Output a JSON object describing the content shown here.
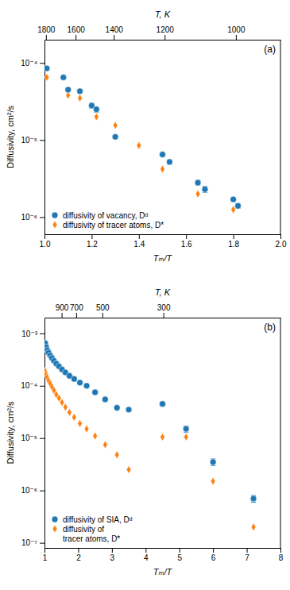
{
  "chart_data": [
    {
      "type": "scatter",
      "log": "y",
      "legend": "lower left",
      "grid": false,
      "xlabel": "Tₘ/T",
      "ylabel": "Diffusivity, cm²/s",
      "x2label": "T, K",
      "annotations": [
        "(a)"
      ],
      "xlim": [
        1.0,
        2.0
      ],
      "ylim": [
        6e-07,
        0.0002
      ],
      "xticks": [
        {
          "value": 1.0,
          "label": "1.0"
        },
        1.2,
        1.4,
        1.6,
        1.8,
        {
          "value": 2.0,
          "label": "2.0"
        }
      ],
      "yticks": [
        {
          "value": 1e-06,
          "label": "10⁻⁶"
        },
        {
          "value": 1e-05,
          "label": "10⁻⁵"
        },
        {
          "value": 0.0001,
          "label": "10⁻⁴"
        }
      ],
      "x2lim": [
        1.0,
        2.0
      ],
      "x2ticks": [
        {
          "value": 1.0061111111111112,
          "label": "1800"
        },
        {
          "value": 1.131875,
          "label": "1600"
        },
        {
          "value": 1.2935714285714286,
          "label": "1400"
        },
        {
          "value": 1.5091666666666668,
          "label": "1200"
        },
        {
          "value": 1.811,
          "label": "1000"
        }
      ],
      "series": [
        {
          "name": "diffusivity of vacancy, Dᵈ",
          "marker": "circle",
          "x": [
            1.01,
            1.08,
            1.1,
            1.15,
            1.2,
            1.22,
            1.3,
            1.5,
            1.53,
            1.65,
            1.68,
            1.8,
            1.82
          ],
          "values": [
            8.5e-05,
            6.5e-05,
            4.5e-05,
            4.3e-05,
            2.8e-05,
            2.5e-05,
            1.1e-05,
            6.5e-06,
            5.2e-06,
            2.8e-06,
            2.3e-06,
            1.7e-06,
            1.4e-06
          ],
          "yerr_lo": [
            3e-06,
            3e-06,
            2e-06,
            2e-06,
            2e-06,
            2e-06,
            5e-07,
            3e-07,
            3e-07,
            2e-07,
            2e-07,
            1e-07,
            1e-07
          ],
          "yerr_hi": [
            3e-06,
            3e-06,
            2e-06,
            2e-06,
            2e-06,
            2e-06,
            5e-07,
            3e-07,
            3e-07,
            2e-07,
            2e-07,
            1e-07,
            1e-07
          ]
        },
        {
          "name": "diffusivity of tracer atoms, D*",
          "marker": "diamond",
          "x": [
            1.01,
            1.1,
            1.15,
            1.22,
            1.3,
            1.4,
            1.5,
            1.65,
            1.8
          ],
          "values": [
            6.5e-05,
            3.8e-05,
            3.5e-05,
            2e-05,
            1.55e-05,
            8.5e-06,
            4.2e-06,
            2e-06,
            1.25e-06
          ]
        }
      ]
    },
    {
      "type": "scatter",
      "log": "y",
      "legend": "lower left",
      "grid": false,
      "xlabel": "Tₘ/T",
      "ylabel": "Diffusivity, cm²/s",
      "x2label": "T, K",
      "annotations": [
        "(b)"
      ],
      "xlim": [
        1.0,
        8.0
      ],
      "ylim": [
        8e-08,
        0.002
      ],
      "xticks": [
        1,
        2,
        3,
        4,
        5,
        6,
        7,
        8
      ],
      "yticks": [
        {
          "value": 1e-07,
          "label": "10⁻⁷"
        },
        {
          "value": 1e-06,
          "label": "10⁻⁶"
        },
        {
          "value": 1e-05,
          "label": "10⁻⁵"
        },
        {
          "value": 0.0001,
          "label": "10⁻⁴"
        },
        {
          "value": 0.001,
          "label": "10⁻³"
        }
      ],
      "x2lim": [
        1.0,
        8.0
      ],
      "x2ticks": [
        {
          "value": 1.508888888888889,
          "label": "900"
        },
        {
          "value": 1.94,
          "label": "700"
        },
        {
          "value": 2.716,
          "label": "500"
        },
        {
          "value": 4.526666666666667,
          "label": "300"
        }
      ],
      "series": [
        {
          "name": "diffusivity of SIA, Dᵈ",
          "marker": "circle",
          "x": [
            1.02,
            1.05,
            1.08,
            1.12,
            1.17,
            1.22,
            1.28,
            1.35,
            1.43,
            1.52,
            1.62,
            1.74,
            1.88,
            2.05,
            2.25,
            2.5,
            2.8,
            3.15,
            3.5,
            4.5,
            5.2,
            6.0,
            7.2
          ],
          "values": [
            0.00065,
            0.00055,
            0.00048,
            0.00043,
            0.00038,
            0.00034,
            0.0003,
            0.000265,
            0.000235,
            0.000205,
            0.00018,
            0.000155,
            0.000135,
            0.000115,
            0.0001,
            7.5e-05,
            5.5e-05,
            3.8e-05,
            3.5e-05,
            4.5e-05,
            1.5e-05,
            3.5e-06,
            7e-07
          ],
          "yerr_lo": [
            0,
            0,
            0,
            0,
            0,
            0,
            0,
            0,
            0,
            0,
            0,
            0,
            0,
            0,
            0,
            0,
            0,
            0,
            0,
            4e-06,
            2e-06,
            5e-07,
            1e-07
          ],
          "yerr_hi": [
            0,
            0,
            0,
            0,
            0,
            0,
            0,
            0,
            0,
            0,
            0,
            0,
            0,
            0,
            0,
            0,
            0,
            0,
            0,
            4e-06,
            2e-06,
            5e-07,
            1e-07
          ]
        },
        {
          "name": "diffusivity of\ntracer atoms, D*",
          "marker": "diamond",
          "x": [
            1.02,
            1.05,
            1.08,
            1.12,
            1.17,
            1.22,
            1.28,
            1.35,
            1.43,
            1.52,
            1.62,
            1.74,
            1.88,
            2.05,
            2.25,
            2.5,
            2.8,
            3.15,
            3.5,
            4.5,
            5.2,
            6.0,
            7.2
          ],
          "values": [
            0.00019,
            0.000165,
            0.000145,
            0.000125,
            0.00011,
            9.5e-05,
            8.2e-05,
            6.8e-05,
            5.8e-05,
            4.8e-05,
            3.9e-05,
            3.1e-05,
            2.5e-05,
            1.9e-05,
            1.5e-05,
            1.1e-05,
            7.5e-06,
            4.8e-06,
            2.5e-06,
            1.05e-05,
            1.05e-05,
            1.5e-06,
            2e-07
          ]
        }
      ]
    }
  ]
}
